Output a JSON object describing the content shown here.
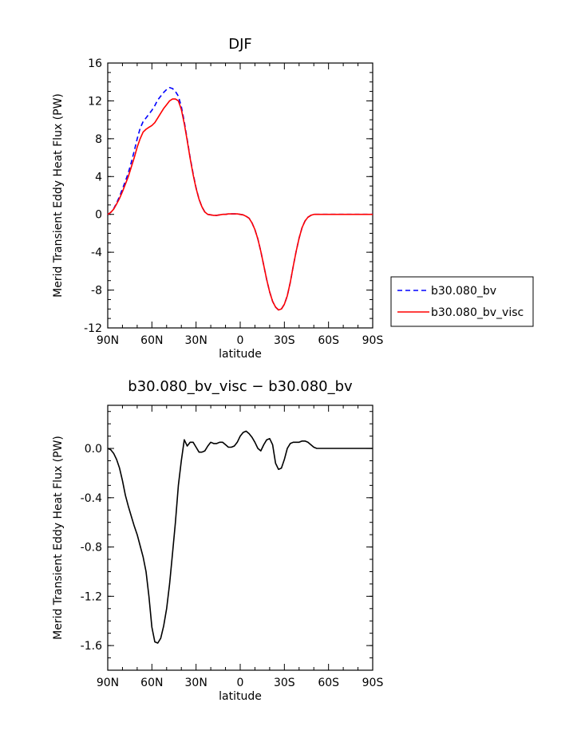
{
  "chart_data": [
    {
      "type": "line",
      "title": "DJF",
      "xlabel": "latitude",
      "ylabel": "Merid Transient Eddy Heat Flux (PW)",
      "x_range": [
        90,
        -90
      ],
      "x_ticks": [
        90,
        60,
        30,
        0,
        -30,
        -60,
        -90
      ],
      "x_tick_labels": [
        "90N",
        "60N",
        "30N",
        "0",
        "30S",
        "60S",
        "90S"
      ],
      "ylim": [
        -12,
        16
      ],
      "y_ticks": [
        -12,
        -8,
        -4,
        0,
        4,
        8,
        12,
        16
      ],
      "y_tick_labels": [
        "-12",
        "-8",
        "-4",
        "0",
        "4",
        "8",
        "12",
        "16"
      ],
      "grid": false,
      "legend_position": "right-outside",
      "series": [
        {
          "name": "b30.080_bv",
          "color": "#0000ff",
          "style": "dashed",
          "x": [
            90,
            88,
            86,
            84,
            82,
            80,
            78,
            76,
            74,
            72,
            70,
            68,
            66,
            64,
            62,
            60,
            58,
            56,
            54,
            52,
            50,
            48,
            46,
            44,
            42,
            40,
            38,
            36,
            34,
            32,
            30,
            28,
            26,
            24,
            22,
            20,
            18,
            16,
            14,
            12,
            10,
            8,
            6,
            4,
            2,
            0,
            -2,
            -4,
            -6,
            -8,
            -10,
            -12,
            -14,
            -16,
            -18,
            -20,
            -22,
            -24,
            -26,
            -28,
            -30,
            -32,
            -34,
            -36,
            -38,
            -40,
            -42,
            -44,
            -46,
            -48,
            -50,
            -52,
            -54,
            -56,
            -58,
            -60,
            -62,
            -64,
            -66,
            -68,
            -70,
            -72,
            -74,
            -76,
            -78,
            -80,
            -82,
            -84,
            -86,
            -88,
            -90
          ],
          "y": [
            0,
            0.2,
            0.6,
            1.2,
            1.9,
            2.7,
            3.5,
            4.4,
            5.5,
            6.7,
            8.0,
            9.1,
            9.8,
            10.2,
            10.6,
            11.0,
            11.5,
            12.1,
            12.5,
            12.9,
            13.2,
            13.4,
            13.3,
            13.0,
            12.5,
            11.4,
            9.8,
            7.9,
            6.0,
            4.3,
            2.8,
            1.6,
            0.8,
            0.25,
            0,
            -0.05,
            -0.1,
            -0.1,
            -0.05,
            0,
            0,
            0.05,
            0.05,
            0.05,
            0.05,
            0,
            -0.05,
            -0.2,
            -0.4,
            -0.9,
            -1.6,
            -2.6,
            -3.9,
            -5.4,
            -6.9,
            -8.2,
            -9.2,
            -9.8,
            -10.1,
            -10.0,
            -9.5,
            -8.6,
            -7.2,
            -5.5,
            -3.9,
            -2.5,
            -1.4,
            -0.7,
            -0.3,
            -0.1,
            0,
            0,
            0,
            0,
            0,
            0,
            0,
            0,
            0,
            0,
            0,
            0,
            0,
            0,
            0,
            0,
            0,
            0,
            0,
            0,
            0
          ]
        },
        {
          "name": "b30.080_bv_visc",
          "color": "#ff0000",
          "style": "solid",
          "x": [
            90,
            88,
            86,
            84,
            82,
            80,
            78,
            76,
            74,
            72,
            70,
            68,
            66,
            64,
            62,
            60,
            58,
            56,
            54,
            52,
            50,
            48,
            46,
            44,
            42,
            40,
            38,
            36,
            34,
            32,
            30,
            28,
            26,
            24,
            22,
            20,
            18,
            16,
            14,
            12,
            10,
            8,
            6,
            4,
            2,
            0,
            -2,
            -4,
            -6,
            -8,
            -10,
            -12,
            -14,
            -16,
            -18,
            -20,
            -22,
            -24,
            -26,
            -28,
            -30,
            -32,
            -34,
            -36,
            -38,
            -40,
            -42,
            -44,
            -46,
            -48,
            -50,
            -52,
            -54,
            -56,
            -58,
            -60,
            -62,
            -64,
            -66,
            -68,
            -70,
            -72,
            -74,
            -76,
            -78,
            -80,
            -82,
            -84,
            -86,
            -88,
            -90
          ],
          "y": [
            0,
            0.2,
            0.55,
            1.1,
            1.7,
            2.4,
            3.2,
            4.0,
            5.0,
            6.0,
            7.1,
            8.0,
            8.7,
            9.0,
            9.2,
            9.4,
            9.7,
            10.2,
            10.7,
            11.2,
            11.6,
            12.0,
            12.2,
            12.2,
            12.0,
            11.1,
            9.6,
            7.8,
            5.9,
            4.2,
            2.75,
            1.6,
            0.8,
            0.25,
            0,
            -0.05,
            -0.1,
            -0.1,
            -0.05,
            0,
            0,
            0.05,
            0.05,
            0.05,
            0.05,
            0,
            -0.05,
            -0.2,
            -0.4,
            -0.9,
            -1.6,
            -2.6,
            -3.9,
            -5.4,
            -6.9,
            -8.2,
            -9.2,
            -9.8,
            -10.1,
            -10.0,
            -9.5,
            -8.6,
            -7.2,
            -5.5,
            -3.9,
            -2.5,
            -1.4,
            -0.7,
            -0.3,
            -0.1,
            0,
            0,
            0,
            0,
            0,
            0,
            0,
            0,
            0,
            0,
            0,
            0,
            0,
            0,
            0,
            0,
            0,
            0,
            0,
            0,
            0
          ]
        }
      ]
    },
    {
      "type": "line",
      "title": "b30.080_bv_visc − b30.080_bv",
      "xlabel": "latitude",
      "ylabel": "Merid Transient Eddy Heat Flux (PW)",
      "x_range": [
        90,
        -90
      ],
      "x_ticks": [
        90,
        60,
        30,
        0,
        -30,
        -60,
        -90
      ],
      "x_tick_labels": [
        "90N",
        "60N",
        "30N",
        "0",
        "30S",
        "60S",
        "90S"
      ],
      "ylim": [
        -1.8,
        0.35
      ],
      "y_ticks": [
        -1.6,
        -1.2,
        -0.8,
        -0.4,
        0.0
      ],
      "y_tick_labels": [
        "-1.6",
        "-1.2",
        "-0.8",
        "-0.4",
        "0.0"
      ],
      "grid": false,
      "series": [
        {
          "color": "#000000",
          "style": "solid",
          "x": [
            90,
            88,
            86,
            84,
            82,
            80,
            78,
            76,
            74,
            72,
            70,
            68,
            66,
            64,
            62,
            60,
            58,
            56,
            54,
            52,
            50,
            48,
            46,
            44,
            42,
            40,
            38,
            36,
            34,
            32,
            30,
            28,
            26,
            24,
            22,
            20,
            18,
            16,
            14,
            12,
            10,
            8,
            6,
            4,
            2,
            0,
            -2,
            -4,
            -6,
            -8,
            -10,
            -12,
            -14,
            -16,
            -18,
            -20,
            -22,
            -24,
            -26,
            -28,
            -30,
            -32,
            -34,
            -36,
            -38,
            -40,
            -42,
            -44,
            -46,
            -48,
            -50,
            -52,
            -54,
            -56,
            -58,
            -60,
            -62,
            -64,
            -66,
            -68,
            -70,
            -72,
            -74,
            -76,
            -78,
            -80,
            -82,
            -84,
            -86,
            -88,
            -90
          ],
          "y": [
            0,
            -0.01,
            -0.04,
            -0.09,
            -0.16,
            -0.26,
            -0.38,
            -0.47,
            -0.55,
            -0.63,
            -0.7,
            -0.79,
            -0.88,
            -1.0,
            -1.2,
            -1.45,
            -1.57,
            -1.58,
            -1.54,
            -1.44,
            -1.3,
            -1.1,
            -0.85,
            -0.6,
            -0.3,
            -0.1,
            0.07,
            0.02,
            0.05,
            0.05,
            0.01,
            -0.03,
            -0.03,
            -0.02,
            0.02,
            0.05,
            0.04,
            0.04,
            0.05,
            0.05,
            0.03,
            0.01,
            0.01,
            0.02,
            0.05,
            0.1,
            0.13,
            0.14,
            0.12,
            0.09,
            0.05,
            0.0,
            -0.02,
            0.03,
            0.07,
            0.08,
            0.03,
            -0.12,
            -0.17,
            -0.16,
            -0.09,
            0.0,
            0.04,
            0.05,
            0.05,
            0.05,
            0.06,
            0.06,
            0.05,
            0.03,
            0.01,
            0.0,
            0,
            0,
            0,
            0,
            0,
            0,
            0,
            0,
            0,
            0,
            0,
            0,
            0,
            0,
            0,
            0,
            0,
            0,
            0
          ]
        }
      ]
    }
  ]
}
